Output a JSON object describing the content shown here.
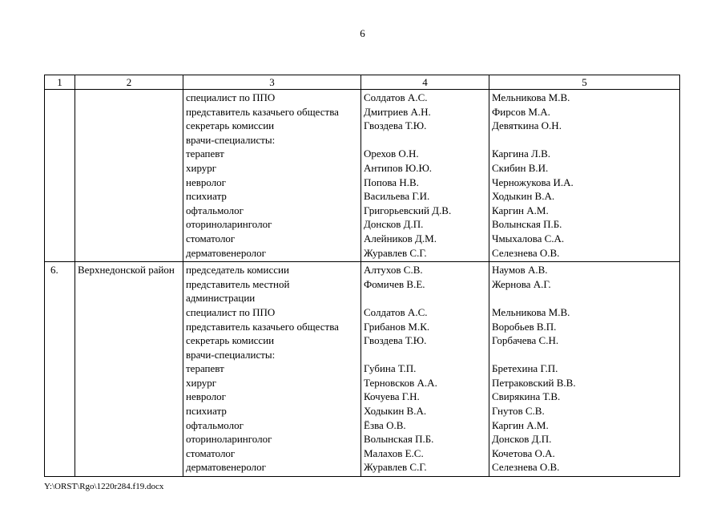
{
  "page": {
    "number": "6",
    "footer": "Y:\\ORST\\Rgo\\1220r284.f19.docx"
  },
  "table": {
    "header": [
      "1",
      "2",
      "3",
      "4",
      "5"
    ],
    "rows": [
      {
        "num": "",
        "district": "",
        "roles": [
          "специалист по ППО",
          "представитель казачьего общества",
          "секретарь комиссии",
          "врачи-специалисты:",
          "терапевт",
          "хирург",
          "невролог",
          "психиатр",
          "офтальмолог",
          "оториноларинголог",
          "стоматолог",
          "дерматовенеролог"
        ],
        "col4": [
          "Солдатов А.С.",
          "Дмитриев А.Н.",
          "Гвоздева Т.Ю.",
          "",
          "Орехов О.Н.",
          "Антипов Ю.Ю.",
          "Попова Н.В.",
          "Васильева Г.И.",
          "Григорьевский Д.В.",
          "Донсков Д.П.",
          "Алейников Д.М.",
          "Журавлев С.Г."
        ],
        "col5": [
          "Мельникова М.В.",
          "Фирсов М.А.",
          "Девяткина О.Н.",
          "",
          "Каргина Л.В.",
          "Скибин В.И.",
          "Черножукова И.А.",
          "Ходыкин В.А.",
          "Каргин А.М.",
          "Волынская П.Б.",
          "Чмыхалова С.А.",
          "Селезнева О.В."
        ]
      },
      {
        "num": "6.",
        "district": "Верхнедонской район",
        "roles": [
          "председатель комиссии",
          "представитель местной",
          "администрации",
          "специалист по ППО",
          "представитель казачьего общества",
          "секретарь комиссии",
          "врачи-специалисты:",
          "терапевт",
          "хирург",
          "невролог",
          "психиатр",
          "офтальмолог",
          "оториноларинголог",
          "стоматолог",
          "дерматовенеролог"
        ],
        "col4": [
          "Алтухов С.В.",
          "Фомичев В.Е.",
          "",
          "Солдатов А.С.",
          "Грибанов М.К.",
          "Гвоздева Т.Ю.",
          "",
          "Губина Т.П.",
          "Терновсков А.А.",
          "Кочуева Г.Н.",
          "Ходыкин В.А.",
          "Ёзва О.В.",
          "Волынская П.Б.",
          "Малахов Е.С.",
          "Журавлев С.Г."
        ],
        "col5": [
          "Наумов А.В.",
          "Жернова А.Г.",
          "",
          "Мельникова М.В.",
          "Воробьев В.П.",
          "Горбачева С.Н.",
          "",
          "Бретехина Г.П.",
          "Петраковский В.В.",
          "Свирякина Т.В.",
          "Гнутов С.В.",
          "Каргин А.М.",
          "Донсков Д.П.",
          "Кочетова О.А.",
          "Селезнева О.В."
        ]
      }
    ]
  }
}
